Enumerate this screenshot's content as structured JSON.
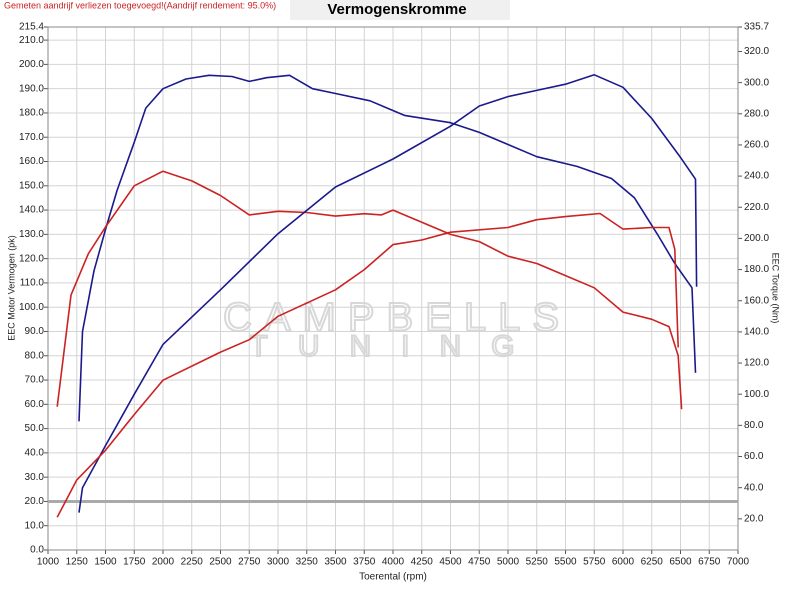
{
  "chart_data": {
    "type": "line",
    "title": "Vermogenskromme",
    "note": "Gemeten aandrijf verliezen toegevoegd!(Aandrijf rendement: 95.0%)",
    "xlabel": "Toerental (rpm)",
    "ylabel": "EEC Motor Vermogen (pk)",
    "y2label": "EEC Torque (Nm)",
    "watermark": [
      "CAMPBELLS",
      "TUNING"
    ],
    "xlim": [
      1000,
      7000
    ],
    "xticks": [
      1000,
      1250,
      1500,
      1750,
      2000,
      2250,
      2500,
      2750,
      3000,
      3250,
      3500,
      3750,
      4000,
      4250,
      4500,
      4750,
      5000,
      5250,
      5500,
      5750,
      6000,
      6250,
      6500,
      6750,
      7000
    ],
    "ylim": [
      0,
      215.4
    ],
    "yticks": [
      {
        "value": 0,
        "label": "0.0"
      },
      {
        "value": 10,
        "label": "10.0"
      },
      {
        "value": 20,
        "label": "20.0"
      },
      {
        "value": 30,
        "label": "30.0"
      },
      {
        "value": 40,
        "label": "40.0"
      },
      {
        "value": 50,
        "label": "50.0"
      },
      {
        "value": 60,
        "label": "60.0"
      },
      {
        "value": 70,
        "label": "70.0"
      },
      {
        "value": 80,
        "label": "80.0"
      },
      {
        "value": 90,
        "label": "90.0"
      },
      {
        "value": 100,
        "label": "100.0"
      },
      {
        "value": 110,
        "label": "110.0"
      },
      {
        "value": 120,
        "label": "120.0"
      },
      {
        "value": 130,
        "label": "130.0"
      },
      {
        "value": 140,
        "label": "140.0"
      },
      {
        "value": 150,
        "label": "150.0"
      },
      {
        "value": 160,
        "label": "160.0"
      },
      {
        "value": 170,
        "label": "170.0"
      },
      {
        "value": 180,
        "label": "180.0"
      },
      {
        "value": 190,
        "label": "190.0"
      },
      {
        "value": 200,
        "label": "200.0"
      },
      {
        "value": 210,
        "label": "210.0"
      },
      {
        "value": 215.4,
        "label": "215.4"
      }
    ],
    "y2lim": [
      0,
      335.7
    ],
    "y2ticks": [
      {
        "value": 20,
        "label": "20.0"
      },
      {
        "value": 40,
        "label": "40.0"
      },
      {
        "value": 60,
        "label": "60.0"
      },
      {
        "value": 80,
        "label": "80.0"
      },
      {
        "value": 100,
        "label": "100.0"
      },
      {
        "value": 120,
        "label": "120.0"
      },
      {
        "value": 140,
        "label": "140.0"
      },
      {
        "value": 160,
        "label": "160.0"
      },
      {
        "value": 180,
        "label": "180.0"
      },
      {
        "value": 200,
        "label": "200.0"
      },
      {
        "value": 220,
        "label": "220.0"
      },
      {
        "value": 240,
        "label": "240.0"
      },
      {
        "value": 260,
        "label": "260.0"
      },
      {
        "value": 280,
        "label": "280.0"
      },
      {
        "value": 300,
        "label": "300.0"
      },
      {
        "value": 320,
        "label": "320.0"
      },
      {
        "value": 335.7,
        "label": "335.7"
      }
    ],
    "hline": 20,
    "grid": true,
    "series": [
      {
        "color": "#1a1a8c",
        "axis": "y",
        "x": [
          1270,
          1300,
          1400,
          1500,
          1600,
          1750,
          1850,
          2000,
          2200,
          2400,
          2600,
          2750,
          2900,
          3100,
          3300,
          3500,
          3800,
          4100,
          4500,
          4750,
          5000,
          5250,
          5600,
          5900,
          6100,
          6300,
          6450,
          6600,
          6630
        ],
        "values": [
          53,
          90,
          115,
          132,
          148,
          168,
          182,
          190,
          194,
          195.5,
          195,
          193,
          194.5,
          195.5,
          190,
          188,
          185,
          179,
          176,
          172,
          167,
          162,
          158,
          153,
          145,
          130,
          118,
          108,
          73
        ]
      },
      {
        "color": "#cc2222",
        "axis": "y",
        "x": [
          1080,
          1200,
          1350,
          1500,
          1750,
          2000,
          2250,
          2500,
          2750,
          3000,
          3250,
          3500,
          3750,
          3900,
          4000,
          4250,
          4500,
          4750,
          5000,
          5250,
          5500,
          5750,
          6000,
          6250,
          6400,
          6480,
          6510
        ],
        "values": [
          59,
          105,
          122,
          133,
          150,
          156,
          152,
          146,
          138,
          139.5,
          139,
          137.5,
          138.5,
          138,
          140,
          135,
          130,
          127,
          121,
          118,
          113,
          108,
          98,
          95,
          92,
          80,
          58
        ]
      },
      {
        "color": "#1a1a8c",
        "axis": "y2",
        "x": [
          1270,
          1300,
          1500,
          1750,
          2000,
          2500,
          3000,
          3500,
          4000,
          4500,
          4750,
          5000,
          5250,
          5500,
          5750,
          6000,
          6250,
          6500,
          6630,
          6640
        ],
        "values": [
          24,
          40,
          67,
          100,
          132,
          167,
          203,
          233,
          251,
          272,
          285,
          291,
          295,
          299,
          305,
          297,
          277,
          252,
          238,
          169
        ]
      },
      {
        "color": "#cc2222",
        "axis": "y2",
        "x": [
          1080,
          1250,
          1500,
          1750,
          2000,
          2500,
          2750,
          3000,
          3500,
          3750,
          4000,
          4250,
          4500,
          5000,
          5250,
          5500,
          5800,
          6000,
          6250,
          6400,
          6450,
          6480
        ],
        "values": [
          21,
          45,
          64,
          87,
          109,
          127,
          135,
          150,
          167,
          180,
          196,
          199,
          204,
          207,
          212,
          214,
          216,
          206,
          207,
          207,
          193,
          130
        ]
      }
    ]
  }
}
